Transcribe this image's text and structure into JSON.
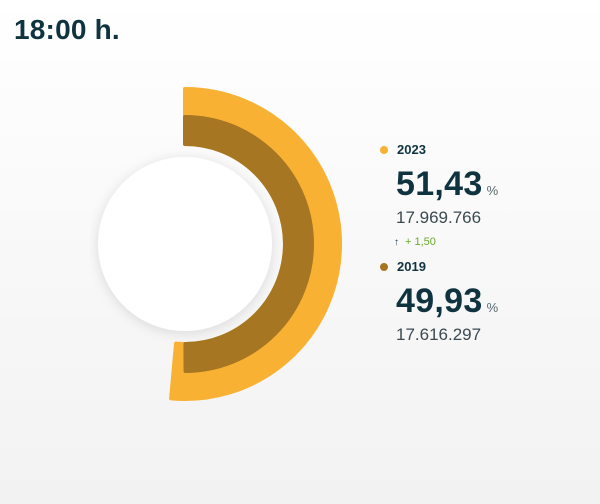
{
  "header": {
    "time_label": "18:00 h."
  },
  "chart_data": {
    "type": "pie",
    "title": "18:00 h.",
    "unit": "%",
    "series": [
      {
        "name": "2023",
        "value": 51.43,
        "value_label": "51,43",
        "votes_label": "17.969.766",
        "color": "#f8b133"
      },
      {
        "name": "2019",
        "value": 49.93,
        "value_label": "49,93",
        "votes_label": "17.616.297",
        "color": "#a67622"
      }
    ],
    "difference": {
      "label": "+ 1,50",
      "direction": "up",
      "color": "#6aab2c"
    }
  },
  "colors": {
    "text_dark": "#0f3440",
    "hole": "#ffffff"
  }
}
